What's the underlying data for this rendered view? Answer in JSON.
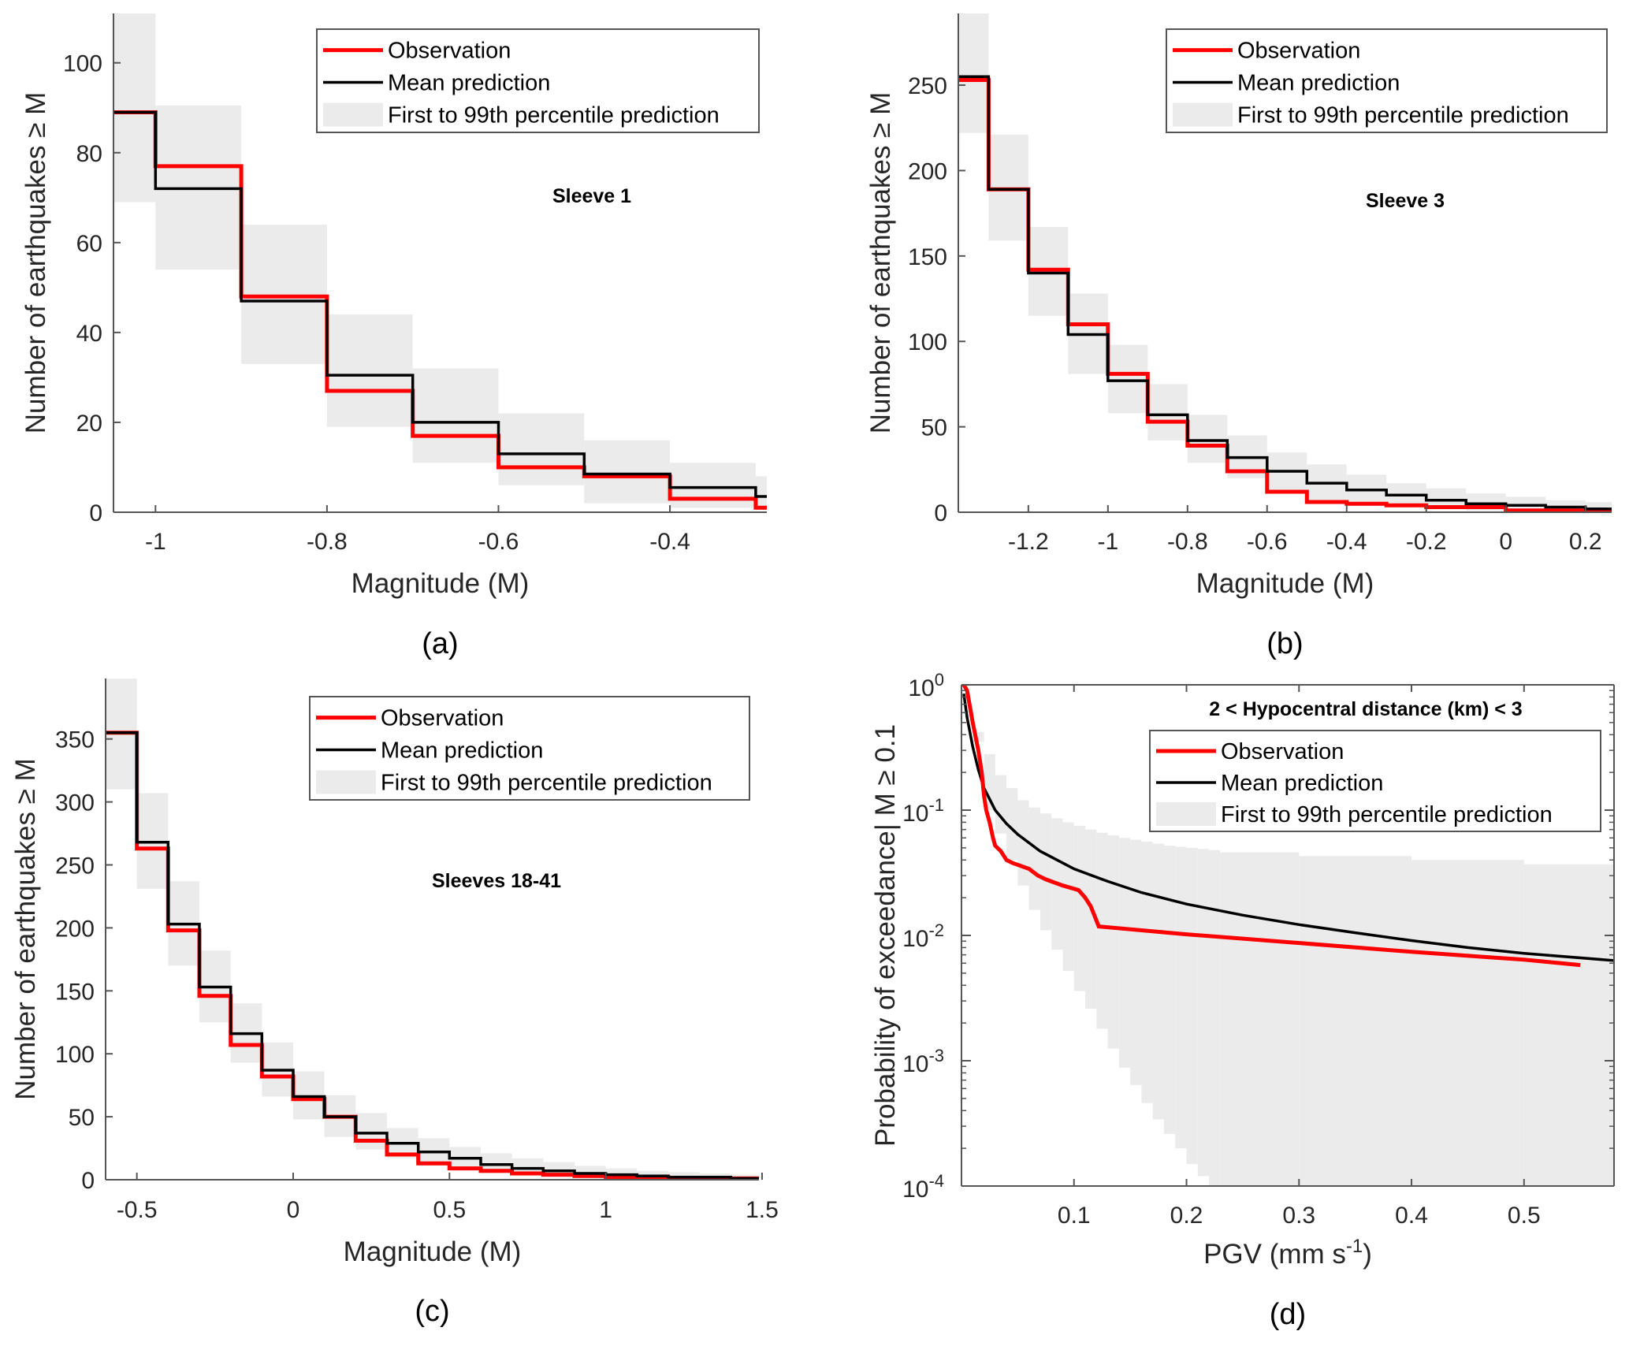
{
  "colors": {
    "observation": "#ff0000",
    "mean": "#000000",
    "band": "#ebebeb",
    "axis": "#555555",
    "legend_border": "#555555"
  },
  "legend": {
    "observation": "Observation",
    "mean": "Mean prediction",
    "band": "First to 99th percentile prediction"
  },
  "chart_data": [
    {
      "id": "a",
      "type": "line",
      "style": "stairs",
      "panel_label": "(a)",
      "annotation": "Sleeve 1",
      "xlabel": "Magnitude (M)",
      "ylabel": "Number of earthquakes ≥ M",
      "xlim": [
        -1.049,
        -0.287
      ],
      "ylim": [
        0,
        111
      ],
      "xticks": [
        -1,
        -0.8,
        -0.6,
        -0.4
      ],
      "xtick_labels": [
        "-1",
        "-0.8",
        "-0.6",
        "-0.4"
      ],
      "yticks": [
        0,
        20,
        40,
        60,
        80,
        100
      ],
      "ytick_labels": [
        "0",
        "20",
        "40",
        "60",
        "80",
        "100"
      ],
      "legend_position": "top-right",
      "bin_edges": [
        -1.049,
        -1.0,
        -0.9,
        -0.8,
        -0.7,
        -0.6,
        -0.5,
        -0.4,
        -0.3,
        -0.287
      ],
      "series": [
        {
          "name": "Observation",
          "values": [
            89,
            77,
            48,
            27,
            17,
            10,
            8,
            3,
            1
          ]
        },
        {
          "name": "Mean prediction",
          "values": [
            89,
            72,
            47,
            30.5,
            20,
            13,
            8.5,
            5.5,
            3.5
          ]
        },
        {
          "name": "First to 99th percentile prediction",
          "low": [
            69,
            54,
            33,
            19,
            11,
            6,
            2,
            1,
            1
          ],
          "high": [
            111,
            90.5,
            64,
            44,
            32,
            22,
            16,
            11,
            8
          ]
        }
      ]
    },
    {
      "id": "b",
      "type": "line",
      "style": "stairs",
      "panel_label": "(b)",
      "annotation": "Sleeve 3",
      "xlabel": "Magnitude (M)",
      "ylabel": "Number of earthquakes ≥ M",
      "xlim": [
        -1.376,
        0.266
      ],
      "ylim": [
        0,
        292
      ],
      "xticks": [
        -1.2,
        -1,
        -0.8,
        -0.6,
        -0.4,
        -0.2,
        0,
        0.2
      ],
      "xtick_labels": [
        "-1.2",
        "-1",
        "-0.8",
        "-0.6",
        "-0.4",
        "-0.2",
        "0",
        "0.2"
      ],
      "yticks": [
        0,
        50,
        100,
        150,
        200,
        250
      ],
      "ytick_labels": [
        "0",
        "50",
        "100",
        "150",
        "200",
        "250"
      ],
      "legend_position": "top-right",
      "bin_edges": [
        -1.376,
        -1.3,
        -1.2,
        -1.1,
        -1.0,
        -0.9,
        -0.8,
        -0.7,
        -0.6,
        -0.5,
        -0.4,
        -0.3,
        -0.2,
        -0.1,
        0.0,
        0.1,
        0.2,
        0.266
      ],
      "series": [
        {
          "name": "Observation",
          "values": [
            253,
            189,
            142,
            110,
            81,
            53,
            39,
            24,
            12,
            6,
            5,
            4,
            3,
            3,
            1,
            1,
            1
          ]
        },
        {
          "name": "Mean prediction",
          "values": [
            255,
            189,
            140,
            104,
            77,
            57,
            42,
            32,
            24,
            17,
            13,
            10,
            7,
            5,
            4,
            3,
            2
          ]
        },
        {
          "name": "First to 99th percentile prediction",
          "low": [
            222,
            159,
            115,
            81,
            58,
            42,
            29,
            20,
            12,
            7,
            5,
            3,
            2,
            1,
            1,
            0,
            0
          ],
          "high": [
            292,
            221,
            167,
            128,
            98,
            75,
            57,
            45,
            35,
            28,
            22,
            17,
            14,
            11,
            9,
            7,
            6
          ]
        }
      ]
    },
    {
      "id": "c",
      "type": "line",
      "style": "stairs",
      "panel_label": "(c)",
      "annotation": "Sleeves 18-41",
      "xlabel": "Magnitude (M)",
      "ylabel": "Number of earthquakes ≥ M",
      "xlim": [
        -0.6,
        1.49
      ],
      "ylim": [
        0,
        398
      ],
      "xticks": [
        -0.5,
        0,
        0.5,
        1,
        1.5
      ],
      "xtick_labels": [
        "-0.5",
        "0",
        "0.5",
        "1",
        "1.5"
      ],
      "yticks": [
        0,
        50,
        100,
        150,
        200,
        250,
        300,
        350
      ],
      "ytick_labels": [
        "0",
        "50",
        "100",
        "150",
        "200",
        "250",
        "300",
        "350"
      ],
      "legend_position": "top-right",
      "bin_edges": [
        -0.6,
        -0.5,
        -0.4,
        -0.3,
        -0.2,
        -0.1,
        0.0,
        0.1,
        0.2,
        0.3,
        0.4,
        0.5,
        0.6,
        0.7,
        0.8,
        0.9,
        1.0,
        1.1,
        1.2,
        1.3,
        1.4,
        1.49
      ],
      "series": [
        {
          "name": "Observation",
          "values": [
            355,
            263,
            198,
            146,
            107,
            82,
            64,
            50,
            31,
            20,
            13,
            9,
            7,
            5,
            4,
            3,
            2,
            2,
            1,
            1,
            1
          ]
        },
        {
          "name": "Mean prediction",
          "values": [
            355,
            268,
            203,
            153,
            116,
            87,
            66,
            50,
            37,
            29,
            22,
            17,
            12,
            9,
            7,
            5,
            4,
            3,
            2,
            2,
            1
          ]
        },
        {
          "name": "First to 99th percentile prediction",
          "low": [
            310,
            231,
            170,
            125,
            93,
            66,
            48,
            34,
            24,
            17,
            11,
            8,
            5,
            3,
            2,
            1,
            1,
            0,
            0,
            0,
            0
          ],
          "high": [
            398,
            307,
            237,
            182,
            140,
            109,
            86,
            67,
            53,
            41,
            33,
            26,
            21,
            17,
            14,
            11,
            9,
            7,
            6,
            5,
            4
          ]
        }
      ]
    },
    {
      "id": "d",
      "type": "line",
      "style": "curve-log",
      "panel_label": "(d)",
      "annotation": "2 < Hypocentral distance (km) < 3",
      "xlabel": "PGV (mm s",
      "xlabel_sup": "-1",
      "xlabel_end": ")",
      "ylabel": "Probability of exceedance| M ≥ 0.1",
      "xlim": [
        0,
        0.58
      ],
      "ylim": [
        0.0001,
        1
      ],
      "yscale": "log",
      "xticks": [
        0.1,
        0.2,
        0.3,
        0.4,
        0.5
      ],
      "xtick_labels": [
        "0.1",
        "0.2",
        "0.3",
        "0.4",
        "0.5"
      ],
      "yticks": [
        1,
        0.1,
        0.01,
        0.001,
        0.0001
      ],
      "ytick_base": [
        "10",
        "10",
        "10",
        "10",
        "10"
      ],
      "ytick_exp": [
        "0",
        "-1",
        "-2",
        "-3",
        "-4"
      ],
      "legend_position": "top-right",
      "series": [
        {
          "name": "Observation",
          "x": [
            0.002,
            0.005,
            0.01,
            0.015,
            0.018,
            0.02,
            0.022,
            0.025,
            0.028,
            0.03,
            0.035,
            0.04,
            0.045,
            0.06,
            0.068,
            0.075,
            0.09,
            0.104,
            0.11,
            0.115,
            0.122,
            0.2,
            0.3,
            0.4,
            0.5,
            0.55
          ],
          "y": [
            1.0,
            0.9,
            0.5,
            0.3,
            0.2,
            0.13,
            0.1,
            0.08,
            0.06,
            0.052,
            0.047,
            0.04,
            0.038,
            0.034,
            0.03,
            0.028,
            0.025,
            0.023,
            0.02,
            0.017,
            0.0118,
            0.0102,
            0.0087,
            0.0074,
            0.0064,
            0.0058
          ]
        },
        {
          "name": "Mean prediction",
          "x": [
            0.002,
            0.005,
            0.01,
            0.015,
            0.02,
            0.03,
            0.04,
            0.05,
            0.07,
            0.1,
            0.13,
            0.16,
            0.2,
            0.25,
            0.3,
            0.35,
            0.4,
            0.45,
            0.5,
            0.58
          ],
          "y": [
            0.85,
            0.55,
            0.32,
            0.21,
            0.15,
            0.1,
            0.078,
            0.064,
            0.047,
            0.034,
            0.027,
            0.022,
            0.0178,
            0.0145,
            0.0122,
            0.0105,
            0.0091,
            0.008,
            0.0072,
            0.0063
          ]
        },
        {
          "name": "First to 99th percentile prediction",
          "bin_edges": [
            0.0,
            0.01,
            0.02,
            0.03,
            0.04,
            0.05,
            0.06,
            0.07,
            0.08,
            0.09,
            0.1,
            0.11,
            0.12,
            0.13,
            0.14,
            0.15,
            0.16,
            0.17,
            0.18,
            0.19,
            0.2,
            0.21,
            0.22,
            0.23,
            0.3,
            0.4,
            0.5,
            0.58
          ],
          "low": [
            1.0,
            0.35,
            0.1,
            0.065,
            0.04,
            0.025,
            0.016,
            0.011,
            0.0077,
            0.0052,
            0.0036,
            0.0026,
            0.0018,
            0.00125,
            0.00088,
            0.00064,
            0.00046,
            0.00034,
            0.00026,
            0.0002,
            0.00015,
            0.00012,
            0.0001,
            0.0001,
            0.0001,
            0.0001,
            0.0001,
            0.0001
          ],
          "high": [
            1.0,
            0.42,
            0.28,
            0.19,
            0.15,
            0.12,
            0.105,
            0.094,
            0.086,
            0.08,
            0.075,
            0.07,
            0.066,
            0.063,
            0.06,
            0.058,
            0.056,
            0.054,
            0.052,
            0.051,
            0.05,
            0.049,
            0.048,
            0.046,
            0.043,
            0.04,
            0.037,
            0.035
          ]
        }
      ]
    }
  ]
}
